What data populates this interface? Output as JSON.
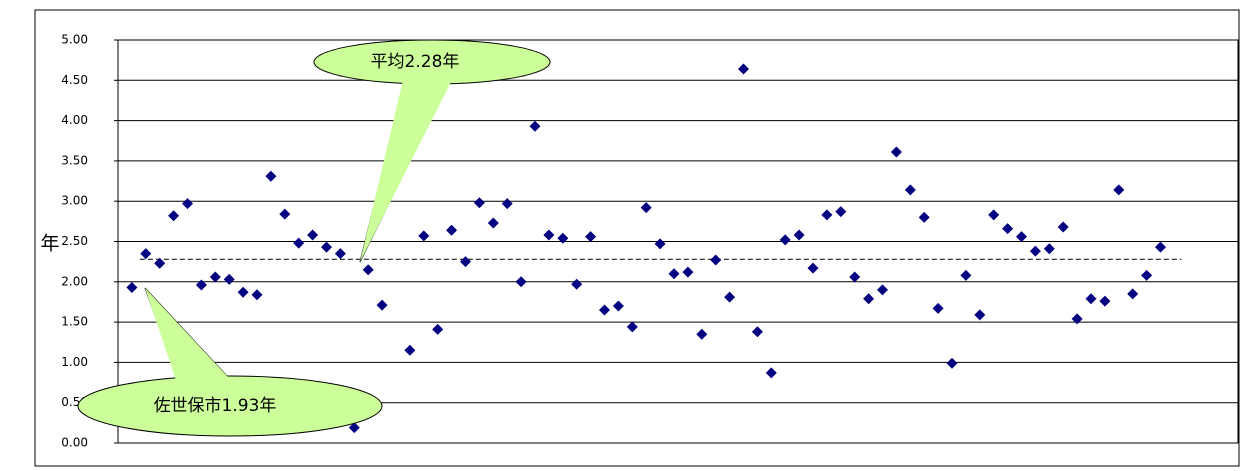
{
  "chart_data": {
    "type": "scatter",
    "y_label": "年",
    "values": [
      1.93,
      2.35,
      2.23,
      2.82,
      2.97,
      1.96,
      2.06,
      2.03,
      1.87,
      1.84,
      3.31,
      2.84,
      2.48,
      2.58,
      2.43,
      2.35,
      0.19,
      2.15,
      1.71,
      null,
      1.15,
      2.57,
      1.41,
      2.64,
      2.25,
      2.98,
      2.73,
      2.97,
      2.0,
      3.93,
      2.58,
      2.54,
      1.97,
      2.56,
      1.65,
      1.7,
      1.44,
      2.92,
      2.47,
      2.1,
      2.12,
      1.35,
      2.27,
      1.81,
      4.64,
      1.38,
      0.87,
      2.52,
      2.58,
      2.17,
      2.83,
      2.87,
      2.06,
      1.79,
      1.9,
      3.61,
      3.14,
      2.8,
      1.67,
      0.99,
      2.08,
      1.59,
      2.83,
      2.66,
      2.56,
      2.38,
      2.41,
      2.68,
      1.54,
      1.79,
      1.76,
      3.14,
      1.85,
      2.08,
      2.43
    ],
    "color": "#000080",
    "mean": 2.28,
    "ylim": [
      0,
      5
    ],
    "yticks": [
      {
        "value": 0,
        "label": "0.00"
      },
      {
        "value": 0.5,
        "label": "0.50"
      },
      {
        "value": 1,
        "label": "1.00"
      },
      {
        "value": 1.5,
        "label": "1.50"
      },
      {
        "value": 2,
        "label": "2.00"
      },
      {
        "value": 2.5,
        "label": "2.50"
      },
      {
        "value": 3,
        "label": "3.00"
      },
      {
        "value": 3.5,
        "label": "3.50"
      },
      {
        "value": 4,
        "label": "4.00"
      },
      {
        "value": 4.5,
        "label": "4.50"
      },
      {
        "value": 5,
        "label": "5.00"
      }
    ],
    "grid": true,
    "annotations": [
      "平均2.28年",
      "佐世保市1.93年"
    ]
  }
}
